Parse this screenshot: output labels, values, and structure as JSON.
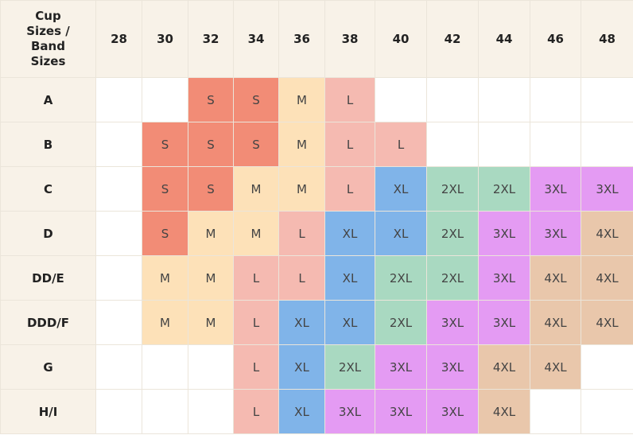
{
  "table": {
    "header": [
      "Cup Sizes / Band Sizes",
      "28",
      "30",
      "32",
      "34",
      "36",
      "38",
      "40",
      "42",
      "44",
      "46",
      "48"
    ],
    "rows": [
      [
        "A",
        null,
        null,
        "S",
        "S",
        "M",
        "L",
        null,
        null,
        null,
        null,
        null
      ],
      [
        "B",
        null,
        "S",
        "S",
        "S",
        "M",
        "L",
        "L",
        null,
        null,
        null,
        null
      ],
      [
        "C",
        null,
        "S",
        "S",
        "M",
        "M",
        "L",
        "XL",
        "2XL",
        "2XL",
        "3XL",
        "3XL"
      ],
      [
        "D",
        null,
        "S",
        "M",
        "M",
        "L",
        "XL",
        "XL",
        "2XL",
        "3XL",
        "3XL",
        "4XL"
      ],
      [
        "DD/E",
        null,
        "M",
        "M",
        "L",
        "L",
        "XL",
        "2XL",
        "2XL",
        "3XL",
        "4XL",
        "4XL"
      ],
      [
        "DDD/F",
        null,
        "M",
        "M",
        "L",
        "XL",
        "XL",
        "2XL",
        "3XL",
        "3XL",
        "4XL",
        "4XL"
      ],
      [
        "G",
        null,
        null,
        null,
        "L",
        "XL",
        "2XL",
        "3XL",
        "3XL",
        "4XL",
        "4XL",
        null
      ],
      [
        "H/I",
        null,
        null,
        null,
        "L",
        "XL",
        "3XL",
        "3XL",
        "3XL",
        "4XL",
        null,
        null
      ]
    ],
    "size_colors": {
      "S": "#f28c76",
      "M": "#fde1b8",
      "L": "#f5bab1",
      "XL": "#80b4e9",
      "2XL": "#a9d9c1",
      "3XL": "#e49bf3",
      "4XL": "#e9c7ab"
    }
  }
}
